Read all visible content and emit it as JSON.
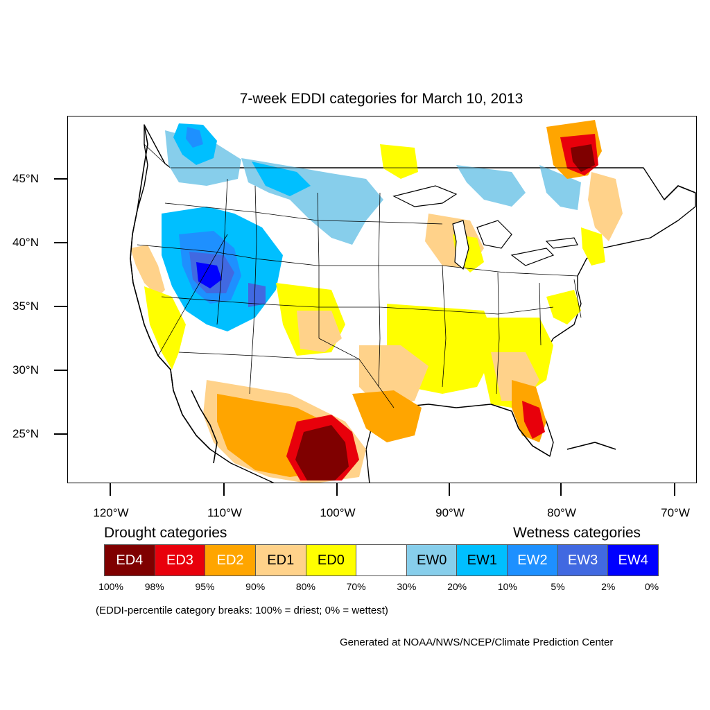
{
  "title": "7-week EDDI categories for March 10, 2013",
  "map": {
    "lat_ticks": [
      "45°N",
      "40°N",
      "35°N",
      "30°N",
      "25°N"
    ],
    "lon_ticks": [
      "120°W",
      "110°W",
      "100°W",
      "90°W",
      "80°W",
      "70°W"
    ],
    "fill_colors": {
      "ED4": "#7f0000",
      "ED3": "#e8000b",
      "ED2": "#ffa500",
      "ED1": "#ffd28a",
      "ED0": "#ffff00",
      "neutral": "#ffffff",
      "EW0": "#87ceeb",
      "EW1": "#00bfff",
      "EW2": "#1e90ff",
      "EW3": "#4169e1",
      "EW4": "#0000ff"
    }
  },
  "legend": {
    "drought_heading": "Drought categories",
    "wetness_heading": "Wetness categories",
    "boxes": [
      {
        "label": "ED4",
        "color": "#7f0000",
        "text_color": "#ffffff"
      },
      {
        "label": "ED3",
        "color": "#e8000b",
        "text_color": "#ffffff"
      },
      {
        "label": "ED2",
        "color": "#ffa500",
        "text_color": "#ffffff"
      },
      {
        "label": "ED1",
        "color": "#ffd28a",
        "text_color": "#000000"
      },
      {
        "label": "ED0",
        "color": "#ffff00",
        "text_color": "#000000"
      },
      {
        "label": "",
        "color": "#ffffff",
        "text_color": "#000000"
      },
      {
        "label": "EW0",
        "color": "#87ceeb",
        "text_color": "#000000"
      },
      {
        "label": "EW1",
        "color": "#00bfff",
        "text_color": "#000000"
      },
      {
        "label": "EW2",
        "color": "#1e90ff",
        "text_color": "#ffffff"
      },
      {
        "label": "EW3",
        "color": "#4169e1",
        "text_color": "#ffffff"
      },
      {
        "label": "EW4",
        "color": "#0000ff",
        "text_color": "#ffffff"
      }
    ],
    "breaks": [
      "100%",
      "98%",
      "95%",
      "90%",
      "80%",
      "70%",
      "30%",
      "20%",
      "10%",
      "5%",
      "2%",
      "0%"
    ]
  },
  "note": "(EDDI-percentile category breaks: 100% = driest; 0% = wettest)",
  "credit": "Generated at NOAA/NWS/NCEP/Climate Prediction Center"
}
